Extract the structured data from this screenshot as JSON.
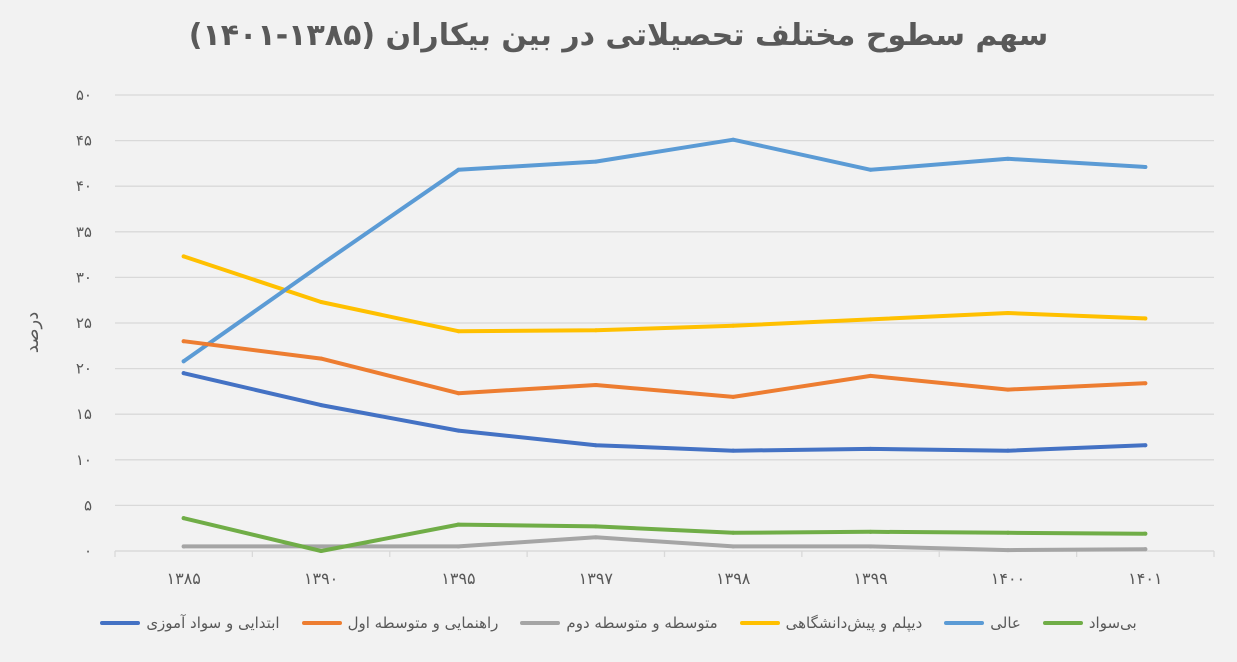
{
  "chart_data": {
    "type": "line",
    "title": "سهم سطوح مختلف تحصیلاتی در بین بیکاران (۱۳۸۵-۱۴۰۱)",
    "xlabel": "",
    "ylabel": "درصد",
    "categories": [
      "۱۳۸۵",
      "۱۳۹۰",
      "۱۳۹۵",
      "۱۳۹۷",
      "۱۳۹۸",
      "۱۳۹۹",
      "۱۴۰۰",
      "۱۴۰۱"
    ],
    "ylim": [
      0,
      50
    ],
    "yticks": [
      0,
      5,
      10,
      15,
      20,
      25,
      30,
      35,
      40,
      45,
      50
    ],
    "ytick_labels": [
      "۰",
      "۵",
      "۱۰",
      "۱۵",
      "۲۰",
      "۲۵",
      "۳۰",
      "۳۵",
      "۴۰",
      "۴۵",
      "۵۰"
    ],
    "grid": true,
    "legend_position": "bottom",
    "series": [
      {
        "name": "ابتدایی و سواد آموزی",
        "color": "#4472c4",
        "values": [
          19.5,
          16.0,
          13.2,
          11.6,
          11.0,
          11.2,
          11.0,
          11.6
        ]
      },
      {
        "name": "راهنمایی و متوسطه اول",
        "color": "#ed7d31",
        "values": [
          23.0,
          21.1,
          17.3,
          18.2,
          16.9,
          19.2,
          17.7,
          18.4
        ]
      },
      {
        "name": "متوسطه و متوسطه دوم",
        "color": "#a5a5a5",
        "values": [
          0.5,
          0.5,
          0.5,
          1.5,
          0.5,
          0.5,
          0.1,
          0.2
        ]
      },
      {
        "name": "دیپلم و پیش‌دانشگاهی",
        "color": "#ffc000",
        "values": [
          32.3,
          27.3,
          24.1,
          24.2,
          24.7,
          25.4,
          26.1,
          25.5
        ]
      },
      {
        "name": "عالی",
        "color": "#5b9bd5",
        "values": [
          20.8,
          31.4,
          41.8,
          42.7,
          45.1,
          41.8,
          43.0,
          42.1
        ]
      },
      {
        "name": "بی‌سواد",
        "color": "#70ad47",
        "values": [
          3.6,
          0.0,
          2.9,
          2.7,
          2.0,
          2.1,
          2.0,
          1.9
        ]
      }
    ]
  }
}
